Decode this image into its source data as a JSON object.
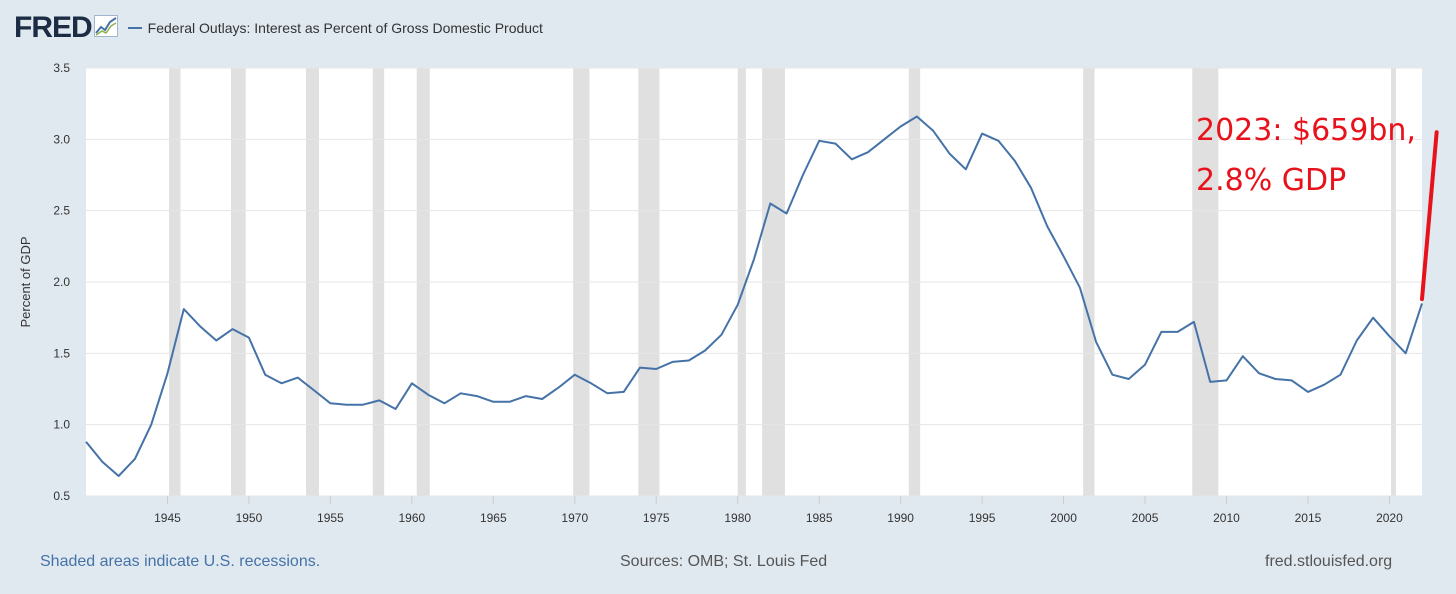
{
  "header": {
    "logo_text": "FRED",
    "logo_icon": "chart-line-icon",
    "series_title": "Federal Outlays: Interest as Percent of Gross Domestic Product"
  },
  "colors": {
    "series": "#4572a7",
    "recession": "#e0e0e0",
    "background": "#e1e9f0",
    "annotation": "#e8121c"
  },
  "chart_data": {
    "type": "line",
    "title": "Federal Outlays: Interest as Percent of Gross Domestic Product",
    "xlabel": "",
    "ylabel": "Percent of GDP",
    "xlim": [
      1940,
      2022
    ],
    "ylim": [
      0.5,
      3.5
    ],
    "yticks": [
      "0.5",
      "1.0",
      "1.5",
      "2.0",
      "2.5",
      "3.0",
      "3.5"
    ],
    "xticks": [
      "1945",
      "1950",
      "1955",
      "1960",
      "1965",
      "1970",
      "1975",
      "1980",
      "1985",
      "1990",
      "1995",
      "2000",
      "2005",
      "2010",
      "2015",
      "2020"
    ],
    "grid": true,
    "series": [
      {
        "name": "Federal Outlays: Interest as Percent of Gross Domestic Product",
        "x": [
          1940,
          1941,
          1942,
          1943,
          1944,
          1945,
          1946,
          1947,
          1948,
          1949,
          1950,
          1951,
          1952,
          1953,
          1954,
          1955,
          1956,
          1957,
          1958,
          1959,
          1960,
          1961,
          1962,
          1963,
          1964,
          1965,
          1966,
          1967,
          1968,
          1969,
          1970,
          1971,
          1972,
          1973,
          1974,
          1975,
          1976,
          1977,
          1978,
          1979,
          1980,
          1981,
          1982,
          1983,
          1984,
          1985,
          1986,
          1987,
          1988,
          1989,
          1990,
          1991,
          1992,
          1993,
          1994,
          1995,
          1996,
          1997,
          1998,
          1999,
          2000,
          2001,
          2002,
          2003,
          2004,
          2005,
          2006,
          2007,
          2008,
          2009,
          2010,
          2011,
          2012,
          2013,
          2014,
          2015,
          2016,
          2017,
          2018,
          2019,
          2020,
          2021,
          2022
        ],
        "values": [
          0.88,
          0.74,
          0.64,
          0.76,
          1.0,
          1.36,
          1.81,
          1.69,
          1.59,
          1.67,
          1.61,
          1.35,
          1.29,
          1.33,
          1.24,
          1.15,
          1.14,
          1.14,
          1.17,
          1.11,
          1.29,
          1.21,
          1.15,
          1.22,
          1.2,
          1.16,
          1.16,
          1.2,
          1.18,
          1.26,
          1.35,
          1.29,
          1.22,
          1.23,
          1.4,
          1.39,
          1.44,
          1.45,
          1.52,
          1.63,
          1.84,
          2.16,
          2.55,
          2.48,
          2.75,
          2.99,
          2.97,
          2.86,
          2.91,
          3.0,
          3.09,
          3.16,
          3.06,
          2.9,
          2.79,
          3.04,
          2.99,
          2.85,
          2.66,
          2.39,
          2.18,
          1.96,
          1.58,
          1.35,
          1.32,
          1.42,
          1.65,
          1.65,
          1.72,
          1.3,
          1.31,
          1.48,
          1.36,
          1.32,
          1.31,
          1.23,
          1.28,
          1.35,
          1.59,
          1.75,
          1.62,
          1.5,
          1.85
        ]
      }
    ],
    "recessions": [
      [
        1945.1,
        1945.8
      ],
      [
        1948.9,
        1949.8
      ],
      [
        1953.5,
        1954.3
      ],
      [
        1957.6,
        1958.3
      ],
      [
        1960.3,
        1961.1
      ],
      [
        1969.9,
        1970.9
      ],
      [
        1973.9,
        1975.2
      ],
      [
        1980.0,
        1980.5
      ],
      [
        1981.5,
        1982.9
      ],
      [
        1990.5,
        1991.2
      ],
      [
        2001.2,
        2001.9
      ],
      [
        2007.9,
        2009.5
      ],
      [
        2020.1,
        2020.4
      ]
    ],
    "annotations": [
      {
        "text_line1": "2023: $659bn,",
        "text_line2": "2.8% GDP",
        "x_from": 2022,
        "y_from": 1.88,
        "x_to": 2022.9,
        "y_to": 3.05
      }
    ]
  },
  "footer": {
    "note": "Shaded areas indicate U.S. recessions.",
    "sources": "Sources: OMB; St. Louis Fed",
    "site": "fred.stlouisfed.org"
  }
}
